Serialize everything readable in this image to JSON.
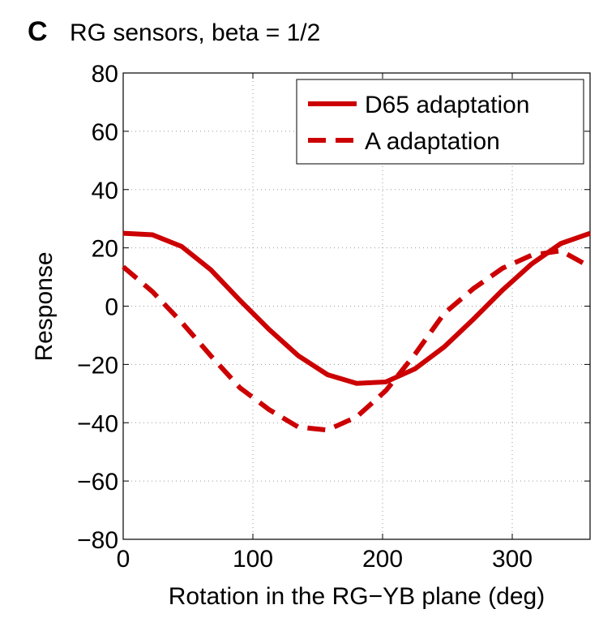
{
  "chart_data": {
    "type": "line",
    "panel_label": "C",
    "title": "RG sensors, beta = 1/2",
    "x_label": "Rotation in the RG−YB plane (deg)",
    "y_label": "Response",
    "x": [
      0,
      22.5,
      45,
      67.5,
      90,
      112.5,
      135,
      157.5,
      180,
      202.5,
      225,
      247.5,
      270,
      292.5,
      315,
      337.5,
      360
    ],
    "series": [
      {
        "name": "D65 adaptation",
        "color": "#cc0000",
        "dash": "solid",
        "values": [
          25,
          24.5,
          20.5,
          12.5,
          2,
          -8,
          -17,
          -23.5,
          -26.5,
          -26,
          -21.5,
          -14,
          -4.5,
          5.5,
          14.5,
          21.5,
          25
        ]
      },
      {
        "name": "A adaptation",
        "color": "#cc0000",
        "dash": "dashed",
        "values": [
          13.5,
          5,
          -5.5,
          -17,
          -28,
          -35.5,
          -41.5,
          -42.5,
          -38,
          -29,
          -16.5,
          -2.5,
          6,
          13,
          17.5,
          19,
          13.5
        ]
      }
    ],
    "xlim": [
      0,
      360
    ],
    "xticks": [
      0,
      100,
      200,
      300
    ],
    "ylim": [
      -80,
      80
    ],
    "yticks": [
      {
        "value": -80,
        "label": "−80"
      },
      {
        "value": -60,
        "label": "−60"
      },
      {
        "value": -40,
        "label": "−40"
      },
      {
        "value": -20,
        "label": "−20"
      },
      0,
      20,
      40,
      60,
      80
    ],
    "grid": true,
    "legend": "upper right"
  }
}
